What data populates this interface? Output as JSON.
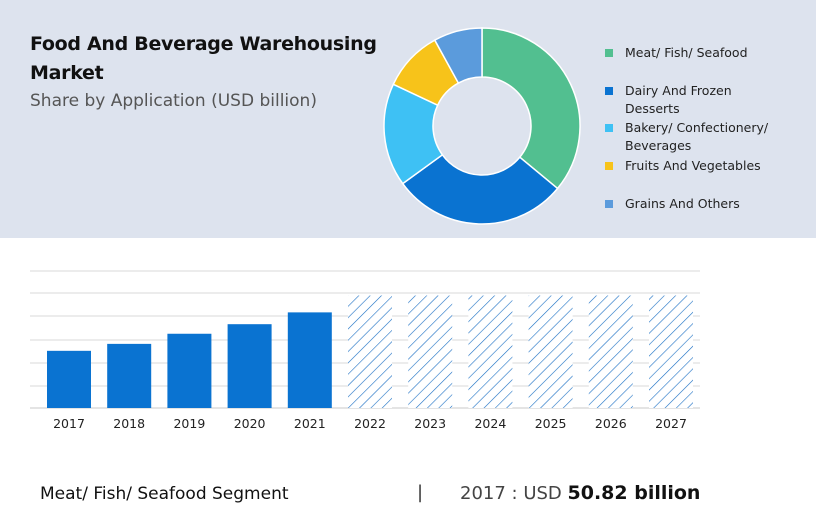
{
  "title": "Food And Beverage Warehousing Market",
  "subtitle": "Share by Application (USD billion)",
  "colors": {
    "panel_bg": "#dde3ee",
    "bar_solid": "#0a73d1",
    "bar_hatch": "#1a6fc4",
    "grid": "#d9d9d9"
  },
  "chart_data": [
    {
      "type": "pie",
      "variant": "donut",
      "title": "Share by Application (USD billion)",
      "categories": [
        "Meat/ Fish/ Seafood",
        "Dairy And Frozen Desserts",
        "Bakery/ Confectionery/ Beverages",
        "Fruits And Vegetables",
        "Grains And Others"
      ],
      "legend_lines": [
        [
          "Meat/ Fish/ Seafood"
        ],
        [
          "Dairy And Frozen",
          "Desserts"
        ],
        [
          "Bakery/ Confectionery/",
          "Beverages"
        ],
        [
          "Fruits And Vegetables"
        ],
        [
          "Grains And Others"
        ]
      ],
      "values": [
        36,
        29,
        17,
        10,
        8
      ],
      "colors": [
        "#52bf90",
        "#0a73d1",
        "#3ec1f4",
        "#f7c31a",
        "#5b9bdc"
      ],
      "legend_position": "right"
    },
    {
      "type": "bar",
      "title": "Meat/ Fish/ Seafood Segment",
      "categories": [
        "2017",
        "2018",
        "2019",
        "2020",
        "2021",
        "2022",
        "2023",
        "2024",
        "2025",
        "2026",
        "2027"
      ],
      "values": [
        50.82,
        57.0,
        66.0,
        74.5,
        85.0,
        100,
        100,
        100,
        100,
        100,
        100
      ],
      "forecast_from": "2022",
      "forecast_note": "2022-2027 bars are hatched forecast placeholders of equal height",
      "ylim": [
        0,
        120
      ],
      "grid": true
    }
  ],
  "footer": {
    "segment": "Meat/ Fish/ Seafood Segment",
    "separator": "|",
    "year_prefix": "2017 : USD",
    "value": "50.82 billion"
  }
}
